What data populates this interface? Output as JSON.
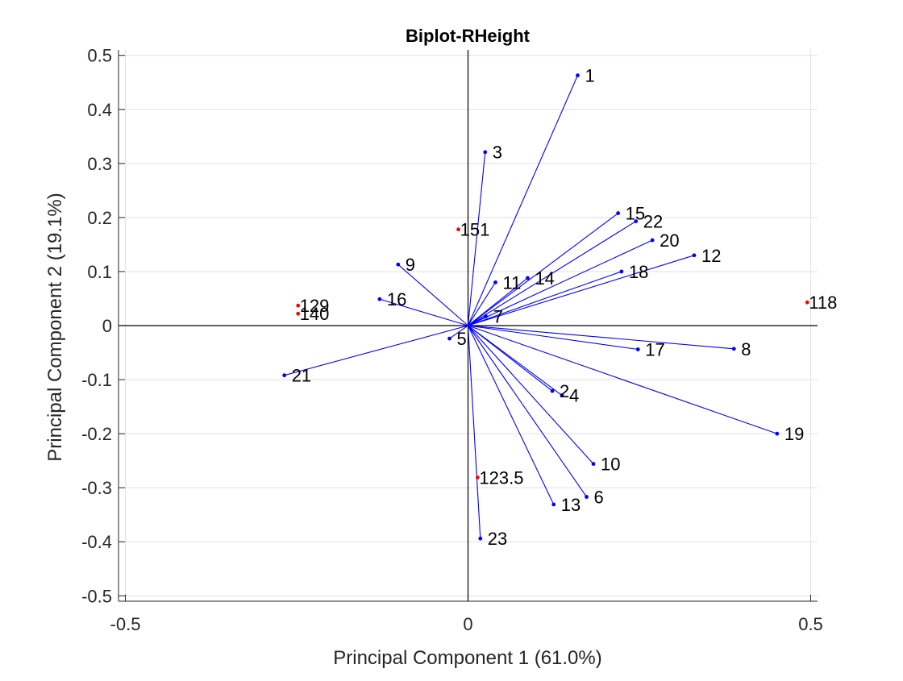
{
  "chart_data": {
    "type": "scatter",
    "subtype": "biplot",
    "title": "Biplot-RHeight",
    "xlabel": "Principal Component 1 (61.0%)",
    "ylabel": "Principal Component 2 (19.1%)",
    "xlim": [
      -0.51,
      0.51
    ],
    "ylim": [
      -0.51,
      0.51
    ],
    "xticks": [
      -0.5,
      0,
      0.5
    ],
    "xtick_labels": [
      "-0.5",
      "0",
      "0.5"
    ],
    "yticks": [
      0.5,
      0.4,
      0.3,
      0.2,
      0.1,
      0,
      -0.1,
      -0.2,
      -0.3,
      -0.4,
      -0.5
    ],
    "ytick_labels": [
      "0.5",
      "0.4",
      "0.3",
      "0.2",
      "0.1",
      "0",
      "-0.1",
      "-0.2",
      "-0.3",
      "-0.4",
      "-0.5"
    ],
    "grid": true,
    "colors": {
      "vector": "#0000ff",
      "observation": "#ff0000",
      "axis": "#000000",
      "grid": "#e0e0e0"
    },
    "vectors": [
      {
        "label": "1",
        "x": 0.16,
        "y": 0.463
      },
      {
        "label": "3",
        "x": 0.025,
        "y": 0.321
      },
      {
        "label": "15",
        "x": 0.219,
        "y": 0.208
      },
      {
        "label": "22",
        "x": 0.245,
        "y": 0.193
      },
      {
        "label": "20",
        "x": 0.269,
        "y": 0.158
      },
      {
        "label": "12",
        "x": 0.33,
        "y": 0.13
      },
      {
        "label": "18",
        "x": 0.224,
        "y": 0.1
      },
      {
        "label": "9",
        "x": -0.102,
        "y": 0.113
      },
      {
        "label": "11",
        "x": 0.04,
        "y": 0.08
      },
      {
        "label": "14",
        "x": 0.087,
        "y": 0.088
      },
      {
        "label": "16",
        "x": -0.129,
        "y": 0.049
      },
      {
        "label": "7",
        "x": 0.026,
        "y": 0.017
      },
      {
        "label": "5",
        "x": -0.027,
        "y": -0.024
      },
      {
        "label": "21",
        "x": -0.268,
        "y": -0.092
      },
      {
        "label": "17",
        "x": 0.248,
        "y": -0.044
      },
      {
        "label": "8",
        "x": 0.388,
        "y": -0.043
      },
      {
        "label": "2",
        "x": 0.123,
        "y": -0.121
      },
      {
        "label": "4",
        "x": 0.137,
        "y": -0.129
      },
      {
        "label": "19",
        "x": 0.451,
        "y": -0.2
      },
      {
        "label": "10",
        "x": 0.183,
        "y": -0.256
      },
      {
        "label": "6",
        "x": 0.173,
        "y": -0.317
      },
      {
        "label": "13",
        "x": 0.125,
        "y": -0.331
      },
      {
        "label": "23",
        "x": 0.018,
        "y": -0.394
      }
    ],
    "observations": [
      {
        "label": "151",
        "x": -0.014,
        "y": 0.178
      },
      {
        "label": "129",
        "x": -0.248,
        "y": 0.037
      },
      {
        "label": "140",
        "x": -0.248,
        "y": 0.022
      },
      {
        "label": "118",
        "x": 0.495,
        "y": 0.043
      },
      {
        "label": "123.5",
        "x": 0.014,
        "y": -0.281
      }
    ]
  }
}
